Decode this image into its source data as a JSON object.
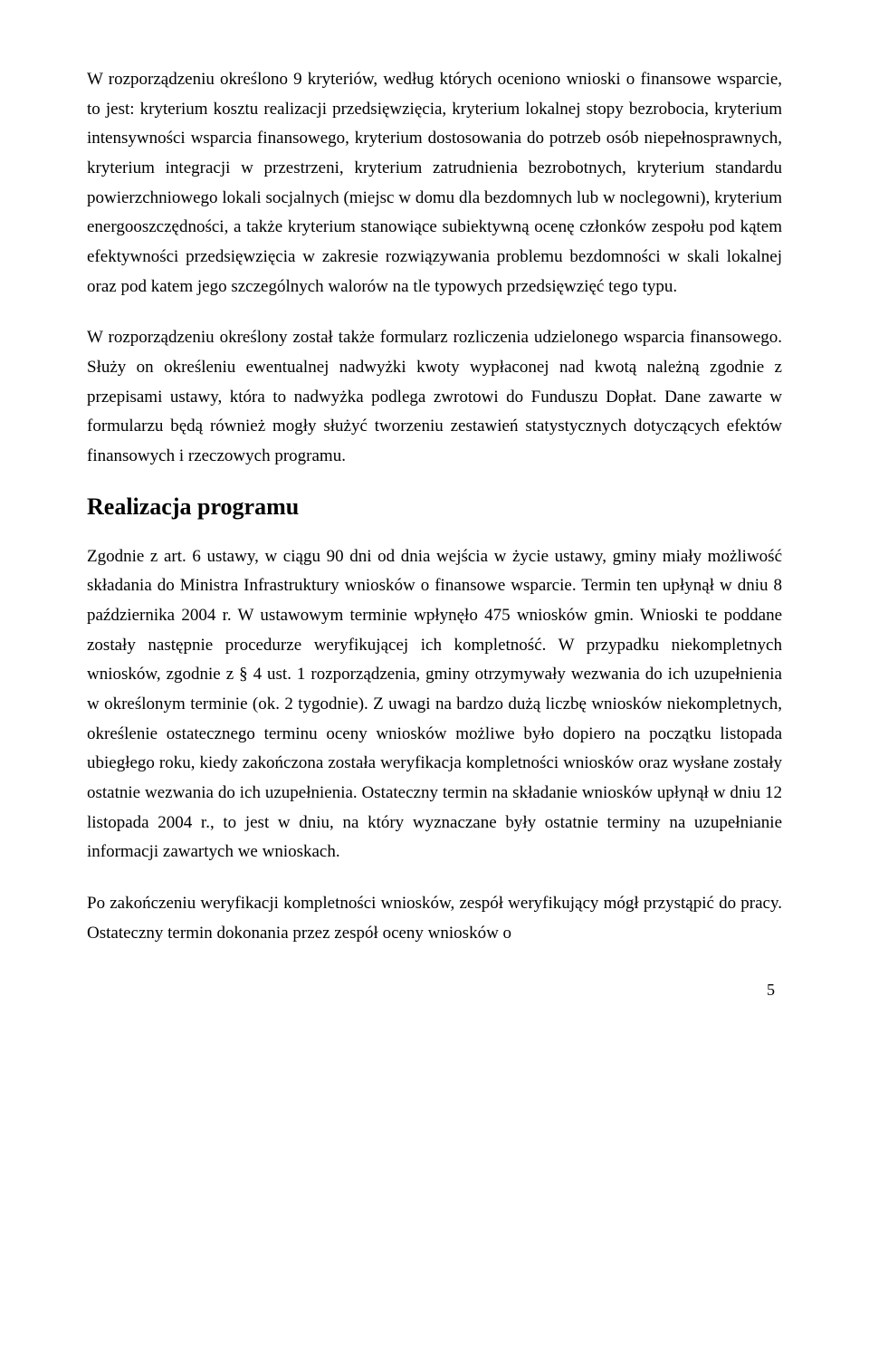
{
  "document": {
    "paragraphs": [
      "W rozporządzeniu określono 9 kryteriów, według których oceniono wnioski o finansowe wsparcie, to jest: kryterium kosztu realizacji przedsięwzięcia, kryterium lokalnej stopy bezrobocia, kryterium intensywności wsparcia finansowego, kryterium dostosowania do potrzeb osób niepełnosprawnych, kryterium integracji w przestrzeni, kryterium zatrudnienia bezrobotnych, kryterium standardu powierzchniowego lokali socjalnych (miejsc w domu dla bezdomnych lub w noclegowni), kryterium energooszczędności, a także kryterium stanowiące subiektywną ocenę członków zespołu pod kątem efektywności przedsięwzięcia w zakresie rozwiązywania problemu bezdomności w skali lokalnej oraz pod katem jego szczególnych walorów na tle typowych przedsięwzięć tego typu.",
      "W rozporządzeniu określony został także formularz rozliczenia udzielonego wsparcia finansowego. Służy on określeniu ewentualnej nadwyżki kwoty wypłaconej nad kwotą należną zgodnie z przepisami ustawy, która to nadwyżka podlega zwrotowi do Funduszu Dopłat. Dane zawarte w formularzu będą również mogły służyć tworzeniu zestawień statystycznych dotyczących efektów finansowych i rzeczowych programu."
    ],
    "heading": "Realizacja programu",
    "paragraphs2": [
      "Zgodnie z art. 6 ustawy, w ciągu 90 dni od dnia wejścia w życie ustawy, gminy miały możliwość składania do Ministra Infrastruktury wniosków o finansowe wsparcie. Termin ten upłynął w dniu 8 października 2004 r. W ustawowym terminie wpłynęło 475 wniosków gmin. Wnioski te poddane zostały następnie procedurze weryfikującej ich kompletność. W przypadku niekompletnych wniosków, zgodnie z § 4 ust. 1 rozporządzenia, gminy otrzymywały wezwania do ich uzupełnienia w określonym terminie (ok. 2 tygodnie). Z uwagi na bardzo dużą liczbę wniosków niekompletnych, określenie ostatecznego terminu oceny wniosków możliwe było dopiero na początku listopada ubiegłego roku, kiedy zakończona została weryfikacja kompletności wniosków oraz wysłane zostały ostatnie wezwania do ich uzupełnienia. Ostateczny termin na składanie wniosków upłynął w dniu 12 listopada 2004 r., to jest w dniu, na który wyznaczane były ostatnie terminy na uzupełnianie informacji zawartych we wnioskach.",
      "Po zakończeniu weryfikacji kompletności wniosków, zespół weryfikujący mógł przystąpić do pracy. Ostateczny termin dokonania przez zespół oceny wniosków o"
    ],
    "page_number": "5"
  },
  "styles": {
    "background_color": "#ffffff",
    "text_color": "#000000",
    "body_fontsize": 19,
    "heading_fontsize": 26,
    "line_height": 1.72,
    "font_family": "Times New Roman"
  }
}
